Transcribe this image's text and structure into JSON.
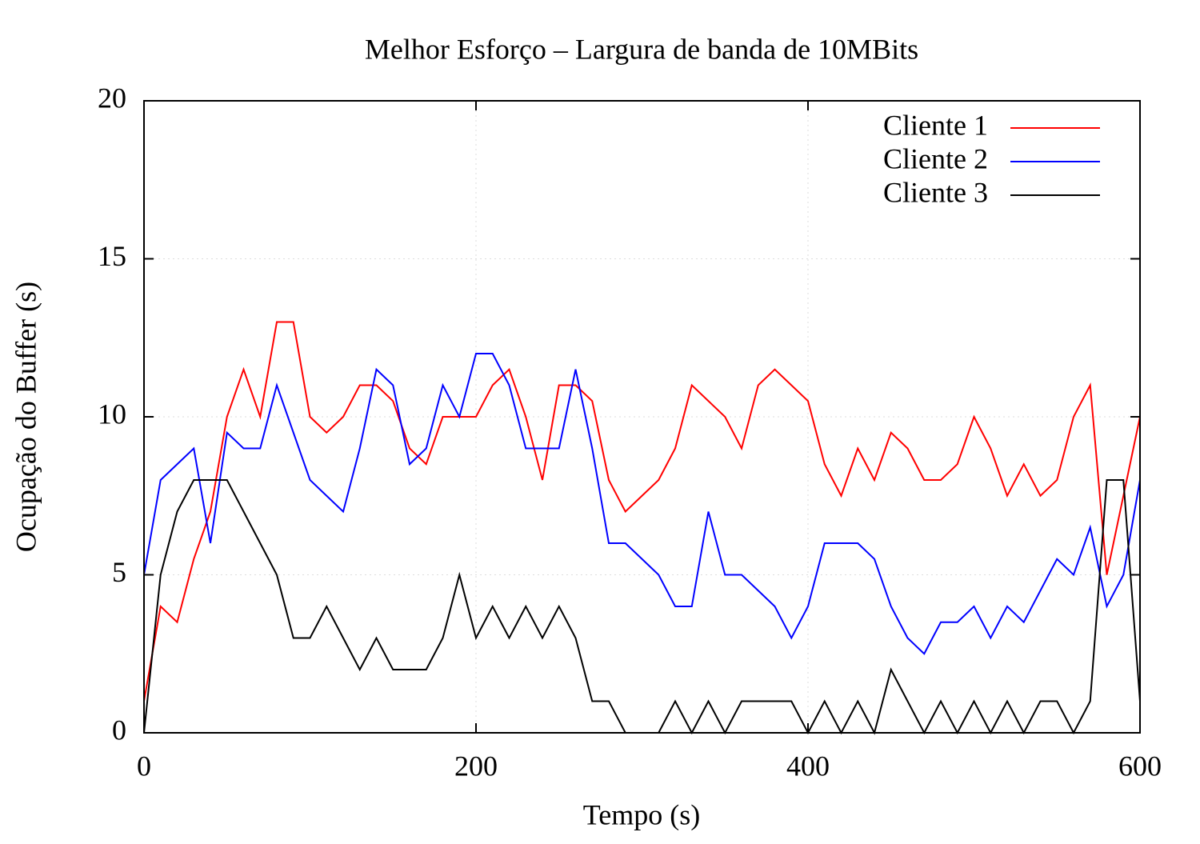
{
  "chart_data": {
    "type": "line",
    "title": "Melhor Esforço – Largura de banda de 10MBits",
    "x_label": "Tempo (s)",
    "y_label": "Ocupação do Buffer (s)",
    "x": [
      0,
      10,
      20,
      30,
      40,
      50,
      60,
      70,
      80,
      90,
      100,
      110,
      120,
      130,
      140,
      150,
      160,
      170,
      180,
      190,
      200,
      210,
      220,
      230,
      240,
      250,
      260,
      270,
      280,
      290,
      300,
      310,
      320,
      330,
      340,
      350,
      360,
      370,
      380,
      390,
      400,
      410,
      420,
      430,
      440,
      450,
      460,
      470,
      480,
      490,
      500,
      510,
      520,
      530,
      540,
      550,
      560,
      570,
      580,
      590,
      600
    ],
    "series": [
      {
        "name": "Cliente 1",
        "color": "#ff0000",
        "values": [
          1,
          4,
          3.5,
          5.5,
          7,
          10,
          11.5,
          10,
          13,
          13,
          10,
          9.5,
          10,
          11,
          11,
          10.5,
          9,
          8.5,
          10,
          10,
          10,
          11,
          11.5,
          10,
          8,
          11,
          11,
          10.5,
          8,
          7,
          7.5,
          8,
          9,
          11,
          10.5,
          10,
          9,
          11,
          11.5,
          11,
          10.5,
          8.5,
          7.5,
          9,
          8,
          9.5,
          9,
          8,
          8,
          8.5,
          10,
          9,
          7.5,
          8.5,
          7.5,
          8,
          10,
          11,
          5,
          7.5,
          10
        ]
      },
      {
        "name": "Cliente 2",
        "color": "#0000ff",
        "values": [
          5,
          8,
          8.5,
          9,
          6,
          9.5,
          9,
          9,
          11,
          9.5,
          8,
          7.5,
          7,
          9,
          11.5,
          11,
          8.5,
          9,
          11,
          10,
          12,
          12,
          11,
          9,
          9,
          9,
          11.5,
          9,
          6,
          6,
          5.5,
          5,
          4,
          4,
          7,
          5,
          5,
          4.5,
          4,
          3,
          4,
          6,
          6,
          6,
          5.5,
          4,
          3,
          2.5,
          3.5,
          3.5,
          4,
          3,
          4,
          3.5,
          4.5,
          5.5,
          5,
          6.5,
          4,
          5,
          8
        ]
      },
      {
        "name": "Cliente 3",
        "color": "#000000",
        "values": [
          0,
          5,
          7,
          8,
          8,
          8,
          7,
          6,
          5,
          3,
          3,
          4,
          3,
          2,
          3,
          2,
          2,
          2,
          3,
          5,
          3,
          4,
          3,
          4,
          3,
          4,
          3,
          1,
          1,
          0,
          0,
          0,
          1,
          0,
          1,
          0,
          1,
          1,
          1,
          1,
          0,
          1,
          0,
          1,
          0,
          2,
          1,
          0,
          1,
          0,
          1,
          0,
          1,
          0,
          1,
          1,
          0,
          1,
          8,
          8,
          1
        ]
      }
    ],
    "xlim": [
      0,
      600
    ],
    "xticks": [
      0,
      200,
      400,
      600
    ],
    "ylim": [
      0,
      20
    ],
    "yticks": [
      0,
      5,
      10,
      15,
      20
    ],
    "grid": true,
    "legend": "top-right"
  }
}
